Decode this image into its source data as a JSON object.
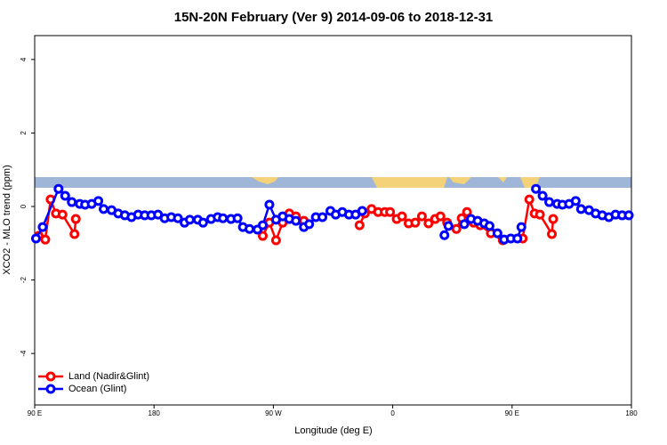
{
  "chart_data": {
    "type": "line",
    "title": "15N-20N February (Ver 9)   2014-09-06 to 2018-12-31",
    "x_label": "Longitude (deg E)",
    "y_label": "XCO2 - MLO trend (ppm)",
    "xlim": [
      90,
      540
    ],
    "xticks": [
      {
        "value": 90,
        "label": "90 E"
      },
      180,
      {
        "value": 270,
        "label": "90 W"
      },
      {
        "value": 360,
        "label": "0"
      },
      {
        "value": 450,
        "label": "90 E"
      },
      {
        "value": 540,
        "label": "180"
      }
    ],
    "ylim": [
      -5.4,
      4.65
    ],
    "yticks": [
      -4,
      -2,
      0,
      2,
      4
    ],
    "legend": "bottom-left",
    "series": [
      {
        "name": "Land (Nadir&Glint)",
        "color": "#ff0000",
        "x": [
          93,
          98,
          102,
          106,
          111,
          120,
          121,
          null,
          262,
          267,
          272,
          277,
          282,
          287,
          293,
          null,
          335,
          339,
          344,
          349,
          354,
          358,
          363,
          367,
          372,
          377,
          382,
          387,
          392,
          396,
          401,
          408,
          412,
          416,
          421,
          426,
          434,
          443,
          458,
          463,
          467,
          471,
          480,
          481
        ],
        "values": [
          -0.8,
          -0.9,
          0.19,
          -0.19,
          -0.22,
          -0.75,
          -0.34,
          null,
          -0.8,
          -0.44,
          -0.92,
          -0.44,
          -0.19,
          -0.27,
          -0.39,
          null,
          -0.51,
          -0.19,
          -0.07,
          -0.15,
          -0.15,
          -0.15,
          -0.34,
          -0.27,
          -0.46,
          -0.44,
          -0.27,
          -0.46,
          -0.34,
          -0.27,
          -0.44,
          -0.61,
          -0.32,
          -0.15,
          -0.44,
          -0.51,
          -0.73,
          -0.92,
          -0.87,
          0.19,
          -0.19,
          -0.22,
          -0.75,
          -0.34
        ]
      },
      {
        "name": "Ocean (Glint)",
        "color": "#0000ff",
        "x": [
          91,
          96,
          108,
          113,
          118,
          124,
          128,
          133,
          138,
          142,
          148,
          153,
          158,
          163,
          168,
          173,
          178,
          183,
          188,
          193,
          198,
          203,
          207,
          213,
          217,
          223,
          228,
          232,
          238,
          243,
          247,
          252,
          258,
          262,
          267,
          272,
          277,
          282,
          287,
          293,
          297,
          302,
          307,
          313,
          317,
          322,
          327,
          332,
          337,
          null,
          399,
          402,
          null,
          414,
          419,
          424,
          429,
          433,
          439,
          444,
          449,
          454,
          457,
          null,
          468,
          473,
          478,
          484,
          488,
          493,
          498,
          502,
          508,
          513,
          518,
          523,
          528,
          533,
          538
        ],
        "values": [
          -0.87,
          -0.56,
          0.48,
          0.29,
          0.12,
          0.07,
          0.05,
          0.07,
          0.15,
          -0.07,
          -0.1,
          -0.19,
          -0.24,
          -0.29,
          -0.22,
          -0.24,
          -0.24,
          -0.22,
          -0.32,
          -0.29,
          -0.32,
          -0.44,
          -0.36,
          -0.36,
          -0.44,
          -0.34,
          -0.29,
          -0.32,
          -0.34,
          -0.32,
          -0.56,
          -0.61,
          -0.63,
          -0.51,
          0.05,
          -0.36,
          -0.27,
          -0.34,
          -0.39,
          -0.56,
          -0.48,
          -0.29,
          -0.29,
          -0.12,
          -0.22,
          -0.15,
          -0.22,
          -0.22,
          -0.12,
          null,
          -0.78,
          -0.53,
          null,
          -0.48,
          -0.34,
          -0.39,
          -0.46,
          -0.53,
          -0.73,
          -0.9,
          -0.87,
          -0.87,
          -0.56,
          null,
          0.48,
          0.29,
          0.12,
          0.07,
          0.05,
          0.07,
          0.15,
          -0.07,
          -0.1,
          -0.19,
          -0.24,
          -0.29,
          -0.22,
          -0.24,
          -0.24
        ]
      }
    ]
  }
}
